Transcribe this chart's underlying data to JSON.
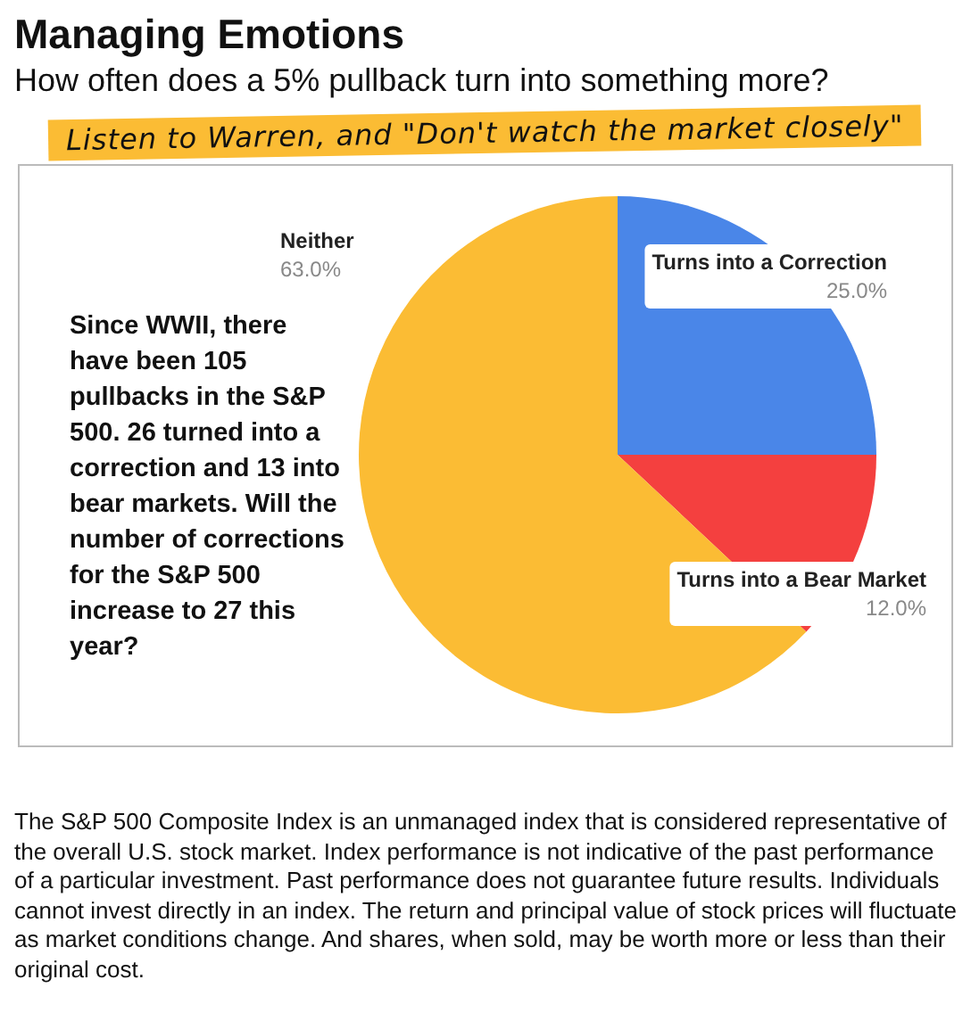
{
  "chart_data": {
    "type": "pie",
    "title": "Managing Emotions",
    "subtitle": "How often does a 5% pullback turn into something more?",
    "categories": [
      "Turns into a Correction",
      "Turns into a Bear Market",
      "Neither"
    ],
    "values": [
      25,
      12,
      63
    ],
    "colors": [
      "#4a86e8",
      "#f4403f",
      "#fbbc34"
    ],
    "value_labels": [
      "25.0%",
      "12.0%",
      "63.0%"
    ],
    "legend": false,
    "annotations": [
      "Listen to Warren, and \"Don't watch the market closely\"",
      "Since WWII, there have been 105 pullbacks in the S&P 500. 26 turned into a correction and 13 into bear markets. Will the number of corrections for the S&P 500 increase to 27 this year?",
      "The S&P 500 Composite Index is an unmanaged index that is considered representative of the overall U.S. stock market. Index performance is not indicative of the past performance of a particular investment. Past performance does not guarantee future results. Individuals cannot invest directly in an index. The return and principal value of stock prices will fluctuate as market conditions change. And shares, when sold, may be worth more or less than their original cost."
    ]
  }
}
